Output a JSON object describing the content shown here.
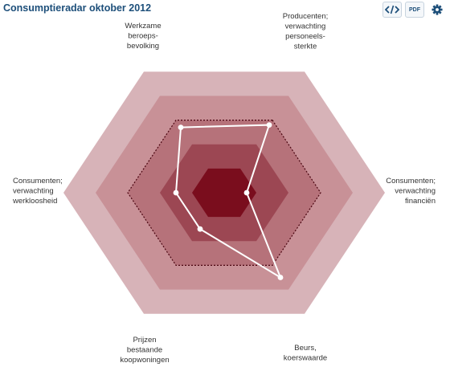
{
  "title": "Consumptieradar oktober 2012",
  "toolbar": {
    "embed_icon": "code-icon",
    "pdf_label": "PDF",
    "settings_icon": "gear-icon"
  },
  "chart_data": {
    "type": "radar",
    "title": "Consumptieradar oktober 2012",
    "axes": [
      {
        "label_lines": [
          "Producenten;",
          "verwachting",
          "personeels-",
          "sterkte"
        ]
      },
      {
        "label_lines": [
          "Consumenten;",
          "verwachting",
          "financiën"
        ]
      },
      {
        "label_lines": [
          "Beurs,",
          "koerswaarde"
        ]
      },
      {
        "label_lines": [
          "Prijzen",
          "bestaande",
          "koopwoningen"
        ]
      },
      {
        "label_lines": [
          "Consumenten;",
          "verwachting",
          "werkloosheid"
        ]
      },
      {
        "label_lines": [
          "Werkzame",
          "beroeps-",
          "bevolking"
        ]
      }
    ],
    "rings": 5,
    "reference_ring": 3,
    "series": [
      {
        "values": [
          2.8,
          0.7,
          3.5,
          1.5,
          1.5,
          2.7
        ]
      }
    ],
    "colors": {
      "rings": [
        "#d7b3b8",
        "#c89197",
        "#b6727a",
        "#9c4753",
        "#7a0d1d"
      ],
      "reference_line": "#4a0510",
      "series_line": "#ffffff"
    }
  }
}
